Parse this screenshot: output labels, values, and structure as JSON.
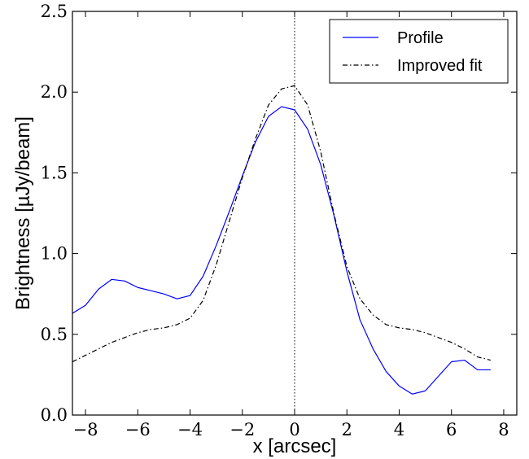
{
  "chart_data": {
    "type": "line",
    "xlabel": "x [arcsec]",
    "ylabel": "Brightness [µJy/beam]",
    "xlim": [
      -8.5,
      8.5
    ],
    "ylim": [
      0.0,
      2.5
    ],
    "xticks": [
      -8,
      -6,
      -4,
      -2,
      0,
      2,
      4,
      6,
      8
    ],
    "xtick_labels": [
      "−8",
      "−6",
      "−4",
      "−2",
      "0",
      "2",
      "4",
      "6",
      "8"
    ],
    "yticks": [
      0.0,
      0.5,
      1.0,
      1.5,
      2.0,
      2.5
    ],
    "ytick_labels": [
      "0.0",
      "0.5",
      "1.0",
      "1.5",
      "2.0",
      "2.5"
    ],
    "grid": false,
    "legend_position": "top-right",
    "vline": {
      "x": 0,
      "style": "dotted",
      "color": "#000000"
    },
    "series": [
      {
        "name": "Profile",
        "color": "#0000ff",
        "style": "solid",
        "x": [
          -8.5,
          -8.0,
          -7.5,
          -7.0,
          -6.5,
          -6.0,
          -5.5,
          -5.0,
          -4.5,
          -4.0,
          -3.5,
          -3.0,
          -2.5,
          -2.0,
          -1.5,
          -1.0,
          -0.5,
          0.0,
          0.5,
          1.0,
          1.5,
          2.0,
          2.5,
          3.0,
          3.5,
          4.0,
          4.5,
          5.0,
          5.5,
          6.0,
          6.5,
          7.0,
          7.5
        ],
        "y": [
          0.63,
          0.68,
          0.78,
          0.84,
          0.83,
          0.79,
          0.77,
          0.75,
          0.72,
          0.74,
          0.86,
          1.05,
          1.26,
          1.48,
          1.69,
          1.85,
          1.91,
          1.89,
          1.77,
          1.55,
          1.24,
          0.89,
          0.59,
          0.41,
          0.27,
          0.18,
          0.13,
          0.15,
          0.24,
          0.33,
          0.34,
          0.28,
          0.28
        ]
      },
      {
        "name": "Improved fit",
        "color": "#000000",
        "style": "dashdot",
        "x": [
          -8.5,
          -8.0,
          -7.5,
          -7.0,
          -6.5,
          -6.0,
          -5.5,
          -5.0,
          -4.5,
          -4.0,
          -3.5,
          -3.0,
          -2.5,
          -2.0,
          -1.5,
          -1.0,
          -0.5,
          0.0,
          0.5,
          1.0,
          1.5,
          2.0,
          2.5,
          3.0,
          3.5,
          4.0,
          4.5,
          5.0,
          5.5,
          6.0,
          6.5,
          7.0,
          7.5
        ],
        "y": [
          0.33,
          0.37,
          0.41,
          0.45,
          0.48,
          0.51,
          0.53,
          0.54,
          0.56,
          0.6,
          0.71,
          0.93,
          1.2,
          1.47,
          1.71,
          1.92,
          2.02,
          2.04,
          1.92,
          1.63,
          1.25,
          0.92,
          0.72,
          0.62,
          0.56,
          0.54,
          0.53,
          0.51,
          0.48,
          0.45,
          0.41,
          0.36,
          0.34
        ]
      }
    ]
  }
}
